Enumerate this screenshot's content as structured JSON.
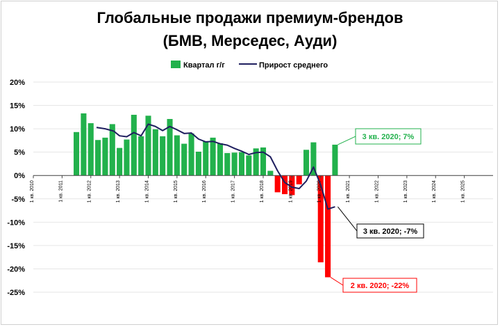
{
  "chart_data": {
    "type": "bar",
    "title": "Глобальные продажи премиум-брендов",
    "subtitle": "(БМВ, Мерседес, Ауди)",
    "legend": {
      "placement": "top",
      "bar_label": "Квартал г/г",
      "line_label": "Прирост среднего"
    },
    "colors": {
      "positive": "#22b14c",
      "negative": "#ff0000",
      "line": "#1f1f5f"
    },
    "xlabel": "",
    "ylabel": "",
    "ylim": [
      -0.25,
      0.2
    ],
    "yticks": [
      0.2,
      0.15,
      0.1,
      0.05,
      0.0,
      -0.05,
      -0.1,
      -0.15,
      -0.2,
      -0.25
    ],
    "ytick_labels": [
      "20%",
      "15%",
      "10%",
      "5%",
      "0%",
      "-5%",
      "-10%",
      "-15%",
      "-20%",
      "-25%"
    ],
    "xlim": [
      2010.0,
      2026.0
    ],
    "xticks": [
      2010,
      2011,
      2012,
      2013,
      2014,
      2015,
      2016,
      2017,
      2018,
      2019,
      2020,
      2021,
      2022,
      2023,
      2024,
      2025
    ],
    "xtick_labels": [
      "1 кв. 2010",
      "1 кв. 2011",
      "1 кв. 2012",
      "1 кв. 2013",
      "1 кв. 2014",
      "1 кв. 2015",
      "1 кв. 2016",
      "1 кв. 2017",
      "1 кв. 2018",
      "1 кв. 2019",
      "1 кв. 2020",
      "1 кв. 2021",
      "1 кв. 2022",
      "1 кв. 2023",
      "1 кв. 2024",
      "1 кв. 2025"
    ],
    "bars": {
      "name": "Квартал г/г",
      "x": [
        2011.5,
        2011.75,
        2012.0,
        2012.25,
        2012.5,
        2012.75,
        2013.0,
        2013.25,
        2013.5,
        2013.75,
        2014.0,
        2014.25,
        2014.5,
        2014.75,
        2015.0,
        2015.25,
        2015.5,
        2015.75,
        2016.0,
        2016.25,
        2016.5,
        2016.75,
        2017.0,
        2017.25,
        2017.5,
        2017.75,
        2018.0,
        2018.25,
        2018.5,
        2018.75,
        2019.0,
        2019.25,
        2019.5,
        2019.75,
        2020.0,
        2020.25,
        2020.5
      ],
      "values": [
        0.093,
        0.133,
        0.112,
        0.076,
        0.081,
        0.11,
        0.059,
        0.077,
        0.13,
        0.084,
        0.128,
        0.099,
        0.084,
        0.121,
        0.086,
        0.068,
        0.09,
        0.051,
        0.073,
        0.081,
        0.069,
        0.048,
        0.049,
        0.05,
        0.043,
        0.058,
        0.06,
        0.01,
        -0.036,
        -0.04,
        -0.042,
        -0.019,
        0.055,
        0.071,
        -0.186,
        -0.218,
        0.066
      ]
    },
    "line": {
      "name": "Прирост среднего",
      "x": [
        2012.2,
        2012.5,
        2012.8,
        2013.0,
        2013.25,
        2013.5,
        2013.75,
        2014.0,
        2014.25,
        2014.5,
        2014.75,
        2015.0,
        2015.25,
        2015.5,
        2015.75,
        2016.0,
        2016.25,
        2016.5,
        2016.75,
        2017.0,
        2017.25,
        2017.5,
        2017.75,
        2018.0,
        2018.25,
        2018.5,
        2018.75,
        2019.0,
        2019.25,
        2019.5,
        2019.75,
        2020.0,
        2020.25,
        2020.5
      ],
      "values": [
        0.103,
        0.1,
        0.095,
        0.085,
        0.083,
        0.092,
        0.085,
        0.11,
        0.105,
        0.096,
        0.105,
        0.098,
        0.09,
        0.091,
        0.078,
        0.072,
        0.073,
        0.068,
        0.065,
        0.058,
        0.052,
        0.045,
        0.049,
        0.05,
        0.04,
        0.01,
        -0.015,
        -0.025,
        -0.028,
        -0.012,
        0.018,
        -0.02,
        -0.072,
        -0.067
      ]
    },
    "annotations": [
      {
        "text": "3 кв. 2020; 7%",
        "x": 2020.5,
        "y": 0.066,
        "color": "#22b14c"
      },
      {
        "text": "3 кв. 2020; -7%",
        "x": 2020.5,
        "y": -0.067,
        "color": "#000000"
      },
      {
        "text": "2 кв. 2020; -22%",
        "x": 2020.25,
        "y": -0.218,
        "color": "#ff0000"
      }
    ]
  }
}
